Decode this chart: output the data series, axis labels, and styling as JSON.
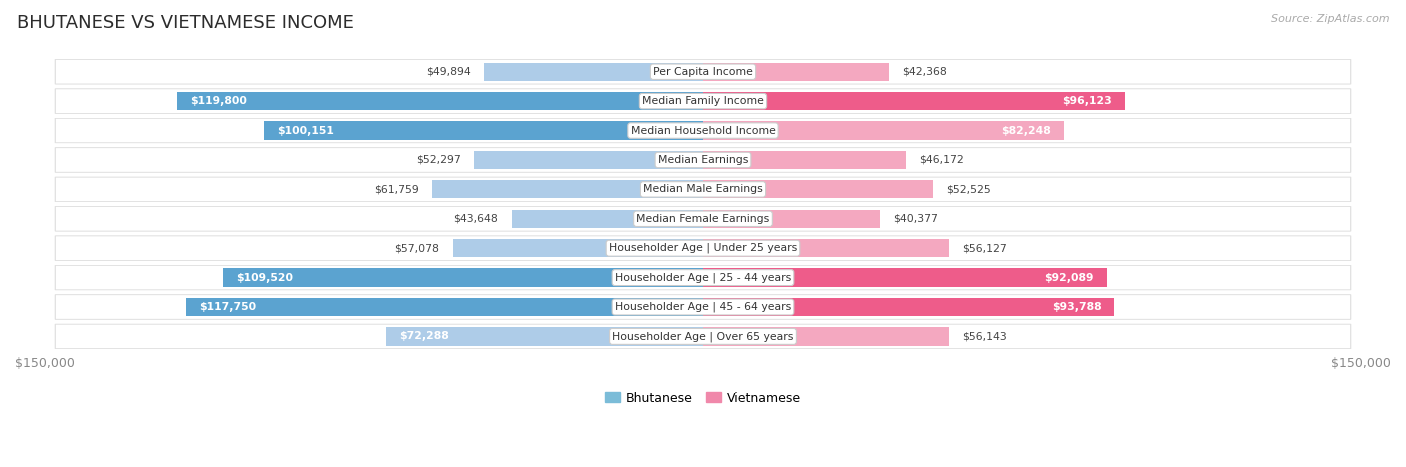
{
  "title": "BHUTANESE VS VIETNAMESE INCOME",
  "source": "Source: ZipAtlas.com",
  "categories": [
    "Per Capita Income",
    "Median Family Income",
    "Median Household Income",
    "Median Earnings",
    "Median Male Earnings",
    "Median Female Earnings",
    "Householder Age | Under 25 years",
    "Householder Age | 25 - 44 years",
    "Householder Age | 45 - 64 years",
    "Householder Age | Over 65 years"
  ],
  "bhutanese": [
    49894,
    119800,
    100151,
    52297,
    61759,
    43648,
    57078,
    109520,
    117750,
    72288
  ],
  "vietnamese": [
    42368,
    96123,
    82248,
    46172,
    52525,
    40377,
    56127,
    92089,
    93788,
    56143
  ],
  "max_val": 150000,
  "blue_light": "#AECCE8",
  "blue_dark": "#5BA3D0",
  "pink_light": "#F4A8C0",
  "pink_dark": "#EE5C8A",
  "row_bg": "#F0F0F0",
  "label_box_color": "#FFFFFF",
  "label_box_edge": "#DDDDDD",
  "title_color": "#2C2C2C",
  "source_color": "#AAAAAA",
  "outer_label_color": "#444444",
  "inner_label_color": "#FFFFFF",
  "legend_blue": "#7BBCD8",
  "legend_pink": "#F088AA",
  "b_inside_threshold": 65000,
  "v_inside_threshold": 65000
}
